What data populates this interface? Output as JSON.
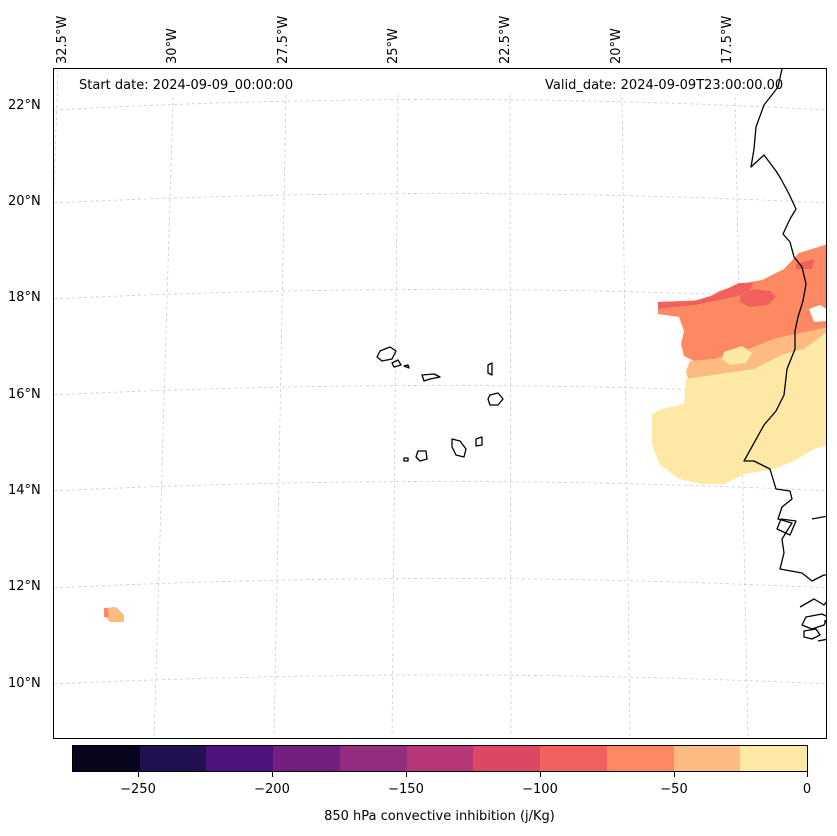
{
  "map": {
    "start_date": "Start date: 2024-09-09_00:00:00",
    "valid_date": "Valid_date: 2024-09-09T23:00:00.00",
    "lon_labels": [
      "32.5°W",
      "30°W",
      "27.5°W",
      "25°W",
      "22.5°W",
      "20°W",
      "17.5°W"
    ],
    "lat_labels": [
      "22°N",
      "20°N",
      "18°N",
      "16°N",
      "14°N",
      "12°N",
      "10°N"
    ],
    "coastline_color": "#000000",
    "gridline_color": "#cccccc"
  },
  "colorbar": {
    "label": "850 hPa convective inhibition (j/Kg)",
    "ticks": [
      "−250",
      "−200",
      "−150",
      "−100",
      "−50",
      "0"
    ],
    "colors": [
      "#07061c",
      "#221150",
      "#4f127b",
      "#721f81",
      "#942c80",
      "#b73779",
      "#dc4763",
      "#f1605d",
      "#fc8961",
      "#febb81",
      "#fde8a6"
    ]
  },
  "field_colors": {
    "level_0_to_m25": "#fde8a6",
    "level_m25_to_m50": "#febb81",
    "level_m50_to_m75": "#fc8961",
    "level_m75_to_m100": "#f1605d"
  }
}
